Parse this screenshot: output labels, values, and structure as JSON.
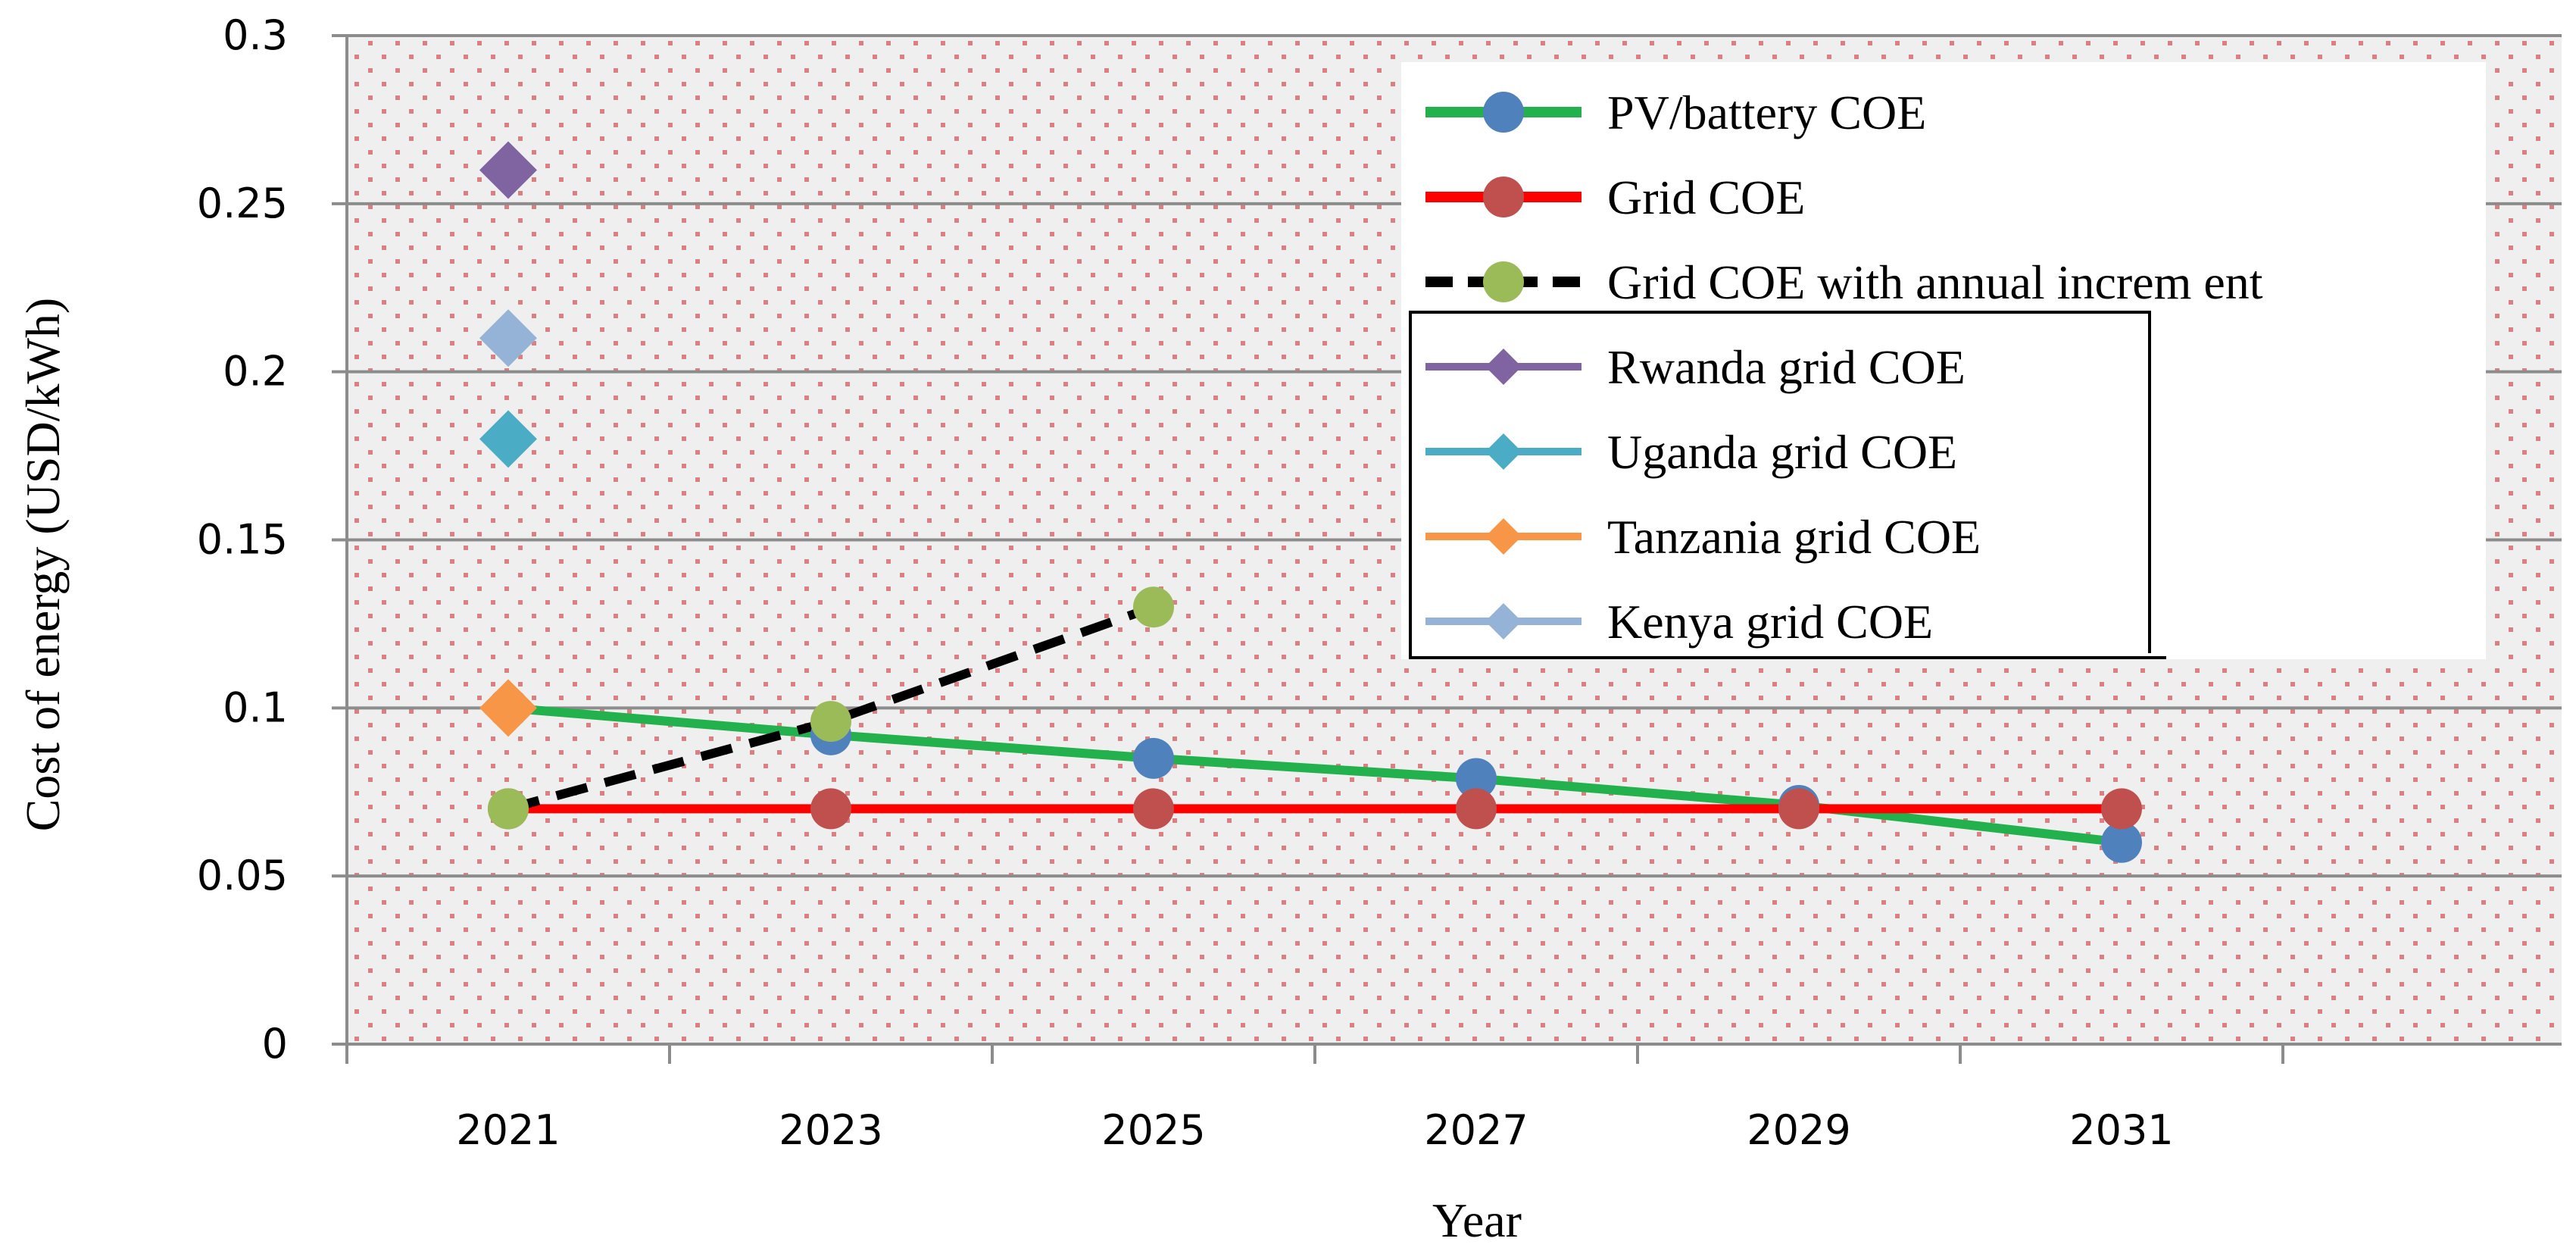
{
  "chart_data": {
    "type": "line",
    "title": "",
    "xlabel": "Year",
    "ylabel": "Cost of energy  (USD/kWh)",
    "ylim": [
      0,
      0.3
    ],
    "yticks": [
      "0",
      "0.05",
      "0.1",
      "0.15",
      "0.2",
      "0.25",
      "0.3"
    ],
    "yticks_values": [
      0,
      0.05,
      0.1,
      0.15,
      0.2,
      0.25,
      0.3
    ],
    "categories": [
      "2021",
      "2023",
      "2025",
      "2027",
      "2029",
      "2031"
    ],
    "grid": true,
    "legend_position": "top-right",
    "series": [
      {
        "name": "PV/battery COE",
        "x": [
          "2021",
          "2023",
          "2025",
          "2027",
          "2029",
          "2031"
        ],
        "values": [
          0.1,
          0.092,
          0.085,
          0.079,
          0.071,
          0.06
        ],
        "line_color": "#22b14c",
        "marker_color": "#4f81bd",
        "marker": "circle",
        "dash": false,
        "show_line": true
      },
      {
        "name": "Grid COE",
        "x": [
          "2021",
          "2023",
          "2025",
          "2027",
          "2029",
          "2031"
        ],
        "values": [
          0.07,
          0.07,
          0.07,
          0.07,
          0.07,
          0.07
        ],
        "line_color": "#ff0000",
        "marker_color": "#c0504d",
        "marker": "circle",
        "dash": false,
        "show_line": true
      },
      {
        "name": "Grid COE  with annual increm ent",
        "x": [
          "2021",
          "2023",
          "2025"
        ],
        "values": [
          0.07,
          0.096,
          0.13
        ],
        "line_color": "#000000",
        "marker_color": "#9bbb59",
        "marker": "circle",
        "dash": true,
        "show_line": true
      },
      {
        "name": "Rwanda grid COE",
        "x": [
          "2021"
        ],
        "values": [
          0.26
        ],
        "line_color": "#8064a2",
        "marker_color": "#8064a2",
        "marker": "diamond",
        "dash": false,
        "show_line": false
      },
      {
        "name": "Uganda grid COE",
        "x": [
          "2021"
        ],
        "values": [
          0.18
        ],
        "line_color": "#4bacc6",
        "marker_color": "#4bacc6",
        "marker": "diamond",
        "dash": false,
        "show_line": false
      },
      {
        "name": "Tanzania  grid COE",
        "x": [
          "2021"
        ],
        "values": [
          0.1
        ],
        "line_color": "#f79646",
        "marker_color": "#f79646",
        "marker": "diamond",
        "dash": false,
        "show_line": false
      },
      {
        "name": "Kenya  grid COE",
        "x": [
          "2021"
        ],
        "values": [
          0.21
        ],
        "line_color": "#95b3d7",
        "marker_color": "#95b3d7",
        "marker": "diamond",
        "dash": false,
        "show_line": false
      }
    ]
  }
}
